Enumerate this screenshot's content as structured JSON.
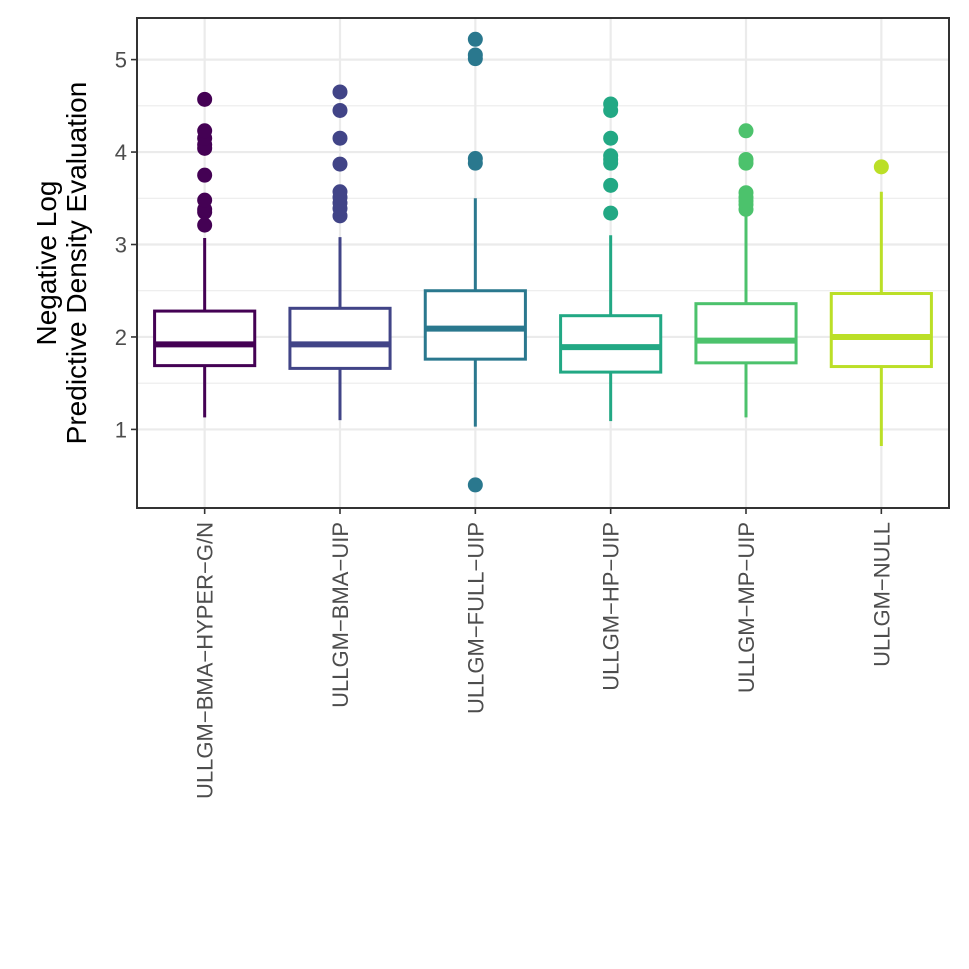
{
  "chart_data": {
    "type": "boxplot",
    "title": "",
    "xlabel": "",
    "ylabel_lines": [
      "Negative Log",
      "Predictive Density Evaluation"
    ],
    "ylim": [
      0.15,
      5.45
    ],
    "yticks": [
      1,
      2,
      3,
      4,
      5
    ],
    "yminor": [
      1.5,
      2.5,
      3.5,
      4.5
    ],
    "grid": true,
    "legend": "none",
    "categories": [
      "ULLGM−BMA−HYPER−G/N",
      "ULLGM−BMA−UIP",
      "ULLGM−FULL−UIP",
      "ULLGM−HP−UIP",
      "ULLGM−MP−UIP",
      "ULLGM−NULL"
    ],
    "series": [
      {
        "name": "ULLGM−BMA−HYPER−G/N",
        "color": "#440154",
        "whisker_low": 1.13,
        "q1": 1.69,
        "median": 1.92,
        "q3": 2.28,
        "whisker_high": 3.07,
        "outliers": [
          3.21,
          3.35,
          3.38,
          3.48,
          3.75,
          4.04,
          4.08,
          4.15,
          4.23,
          4.57
        ]
      },
      {
        "name": "ULLGM−BMA−UIP",
        "color": "#414487",
        "whisker_low": 1.1,
        "q1": 1.66,
        "median": 1.92,
        "q3": 2.31,
        "whisker_high": 3.08,
        "outliers": [
          3.31,
          3.39,
          3.45,
          3.51,
          3.57,
          3.87,
          4.15,
          4.45,
          4.65
        ]
      },
      {
        "name": "ULLGM−FULL−UIP",
        "color": "#2A788E",
        "whisker_low": 1.03,
        "q1": 1.76,
        "median": 2.09,
        "q3": 2.5,
        "whisker_high": 3.5,
        "outliers": [
          0.4,
          3.88,
          3.93,
          5.01,
          5.05,
          5.22
        ]
      },
      {
        "name": "ULLGM−HP−UIP",
        "color": "#22A884",
        "whisker_low": 1.09,
        "q1": 1.62,
        "median": 1.89,
        "q3": 2.23,
        "whisker_high": 3.1,
        "outliers": [
          3.34,
          3.64,
          3.88,
          3.92,
          3.96,
          4.15,
          4.45,
          4.52
        ]
      },
      {
        "name": "ULLGM−MP−UIP",
        "color": "#4CC26C",
        "whisker_low": 1.13,
        "q1": 1.72,
        "median": 1.96,
        "q3": 2.36,
        "whisker_high": 3.32,
        "outliers": [
          3.38,
          3.43,
          3.47,
          3.51,
          3.56,
          3.88,
          3.92,
          4.23
        ]
      },
      {
        "name": "ULLGM−NULL",
        "color": "#BBDF27",
        "whisker_low": 0.82,
        "q1": 1.68,
        "median": 2.0,
        "q3": 2.47,
        "whisker_high": 3.57,
        "outliers": [
          3.84
        ]
      }
    ]
  }
}
